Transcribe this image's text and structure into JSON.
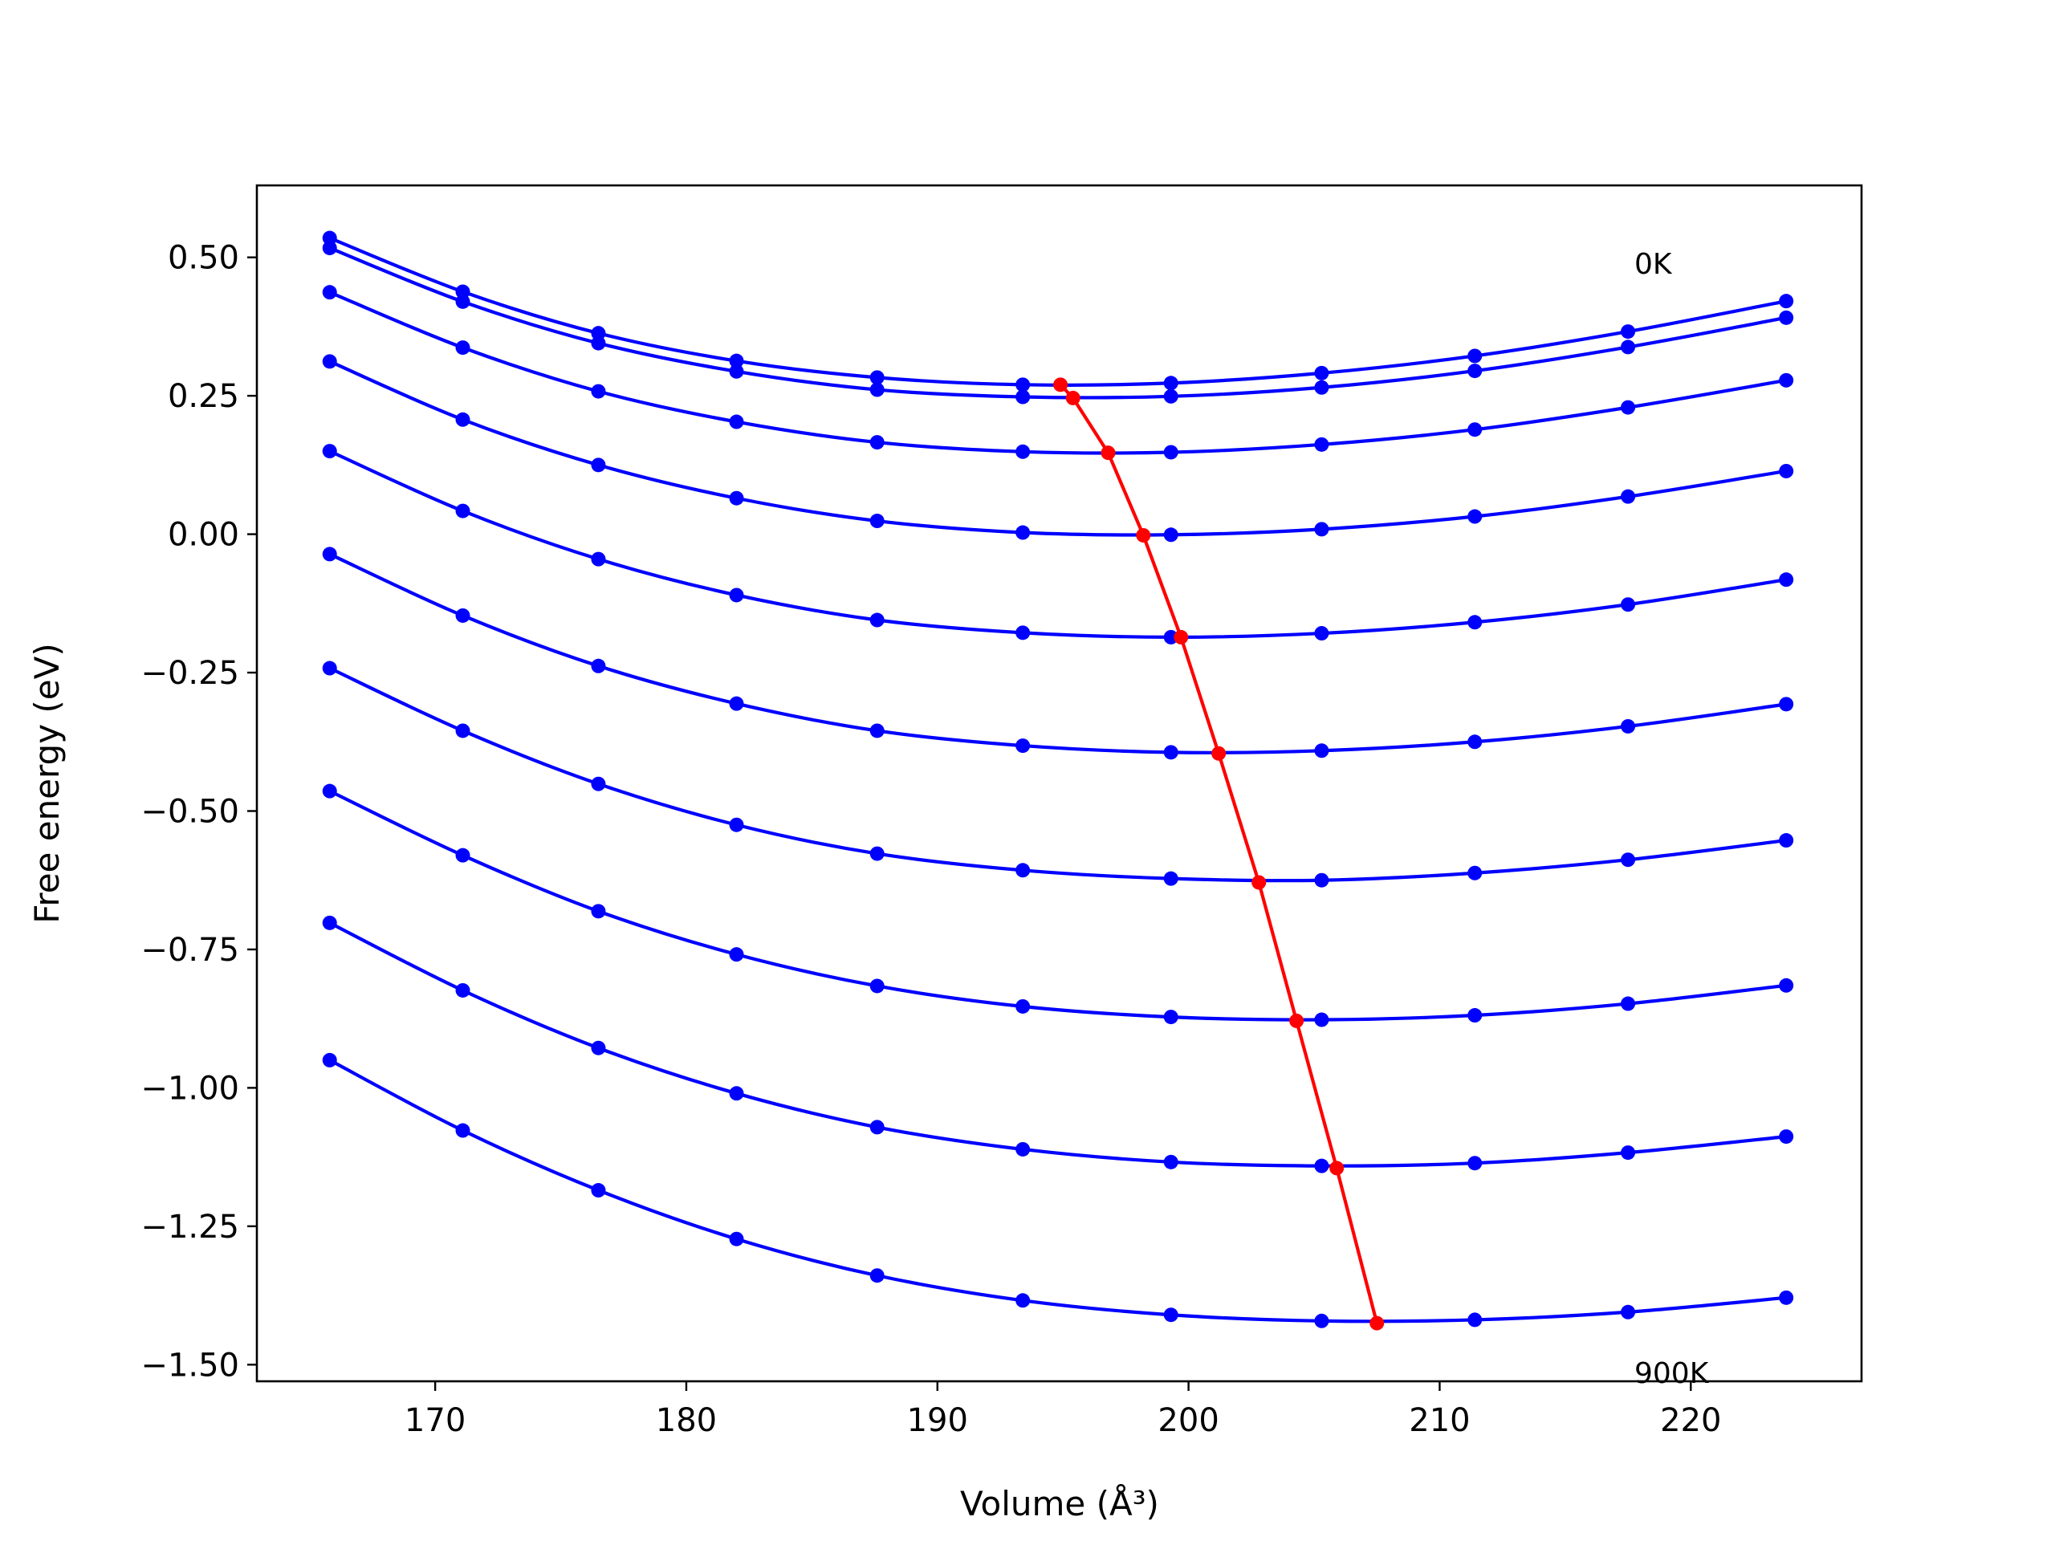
{
  "chart_data": {
    "type": "line",
    "xlabel": "Volume (Å³)",
    "ylabel": "Free energy (eV)",
    "xlim": [
      162.9,
      226.8
    ],
    "ylim": [
      -1.53,
      0.63
    ],
    "x_ticks": [
      170,
      180,
      190,
      200,
      210,
      220
    ],
    "x_tick_labels": [
      "170",
      "180",
      "190",
      "200",
      "210",
      "220"
    ],
    "y_ticks": [
      0.5,
      0.25,
      0.0,
      -0.25,
      -0.5,
      -0.75,
      -1.0,
      -1.25,
      -1.5
    ],
    "y_tick_labels": [
      "0.50",
      "0.25",
      "0.00",
      "−0.25",
      "−0.50",
      "−0.75",
      "−1.00",
      "−1.25",
      "−1.50"
    ],
    "grid": false,
    "annotations": [
      {
        "text": "0K",
        "x": 217.5,
        "y": 0.48
      },
      {
        "text": "900K",
        "x": 217.5,
        "y": -1.53
      }
    ],
    "x": [
      165.8,
      171.1,
      176.5,
      182.0,
      187.6,
      193.4,
      199.3,
      205.3,
      211.4,
      217.5,
      223.8
    ],
    "series": [
      {
        "color": "#0000ff",
        "values": [
          0.535,
          0.438,
          0.363,
          0.313,
          0.283,
          0.27,
          0.273,
          0.291,
          0.322,
          0.366,
          0.421
        ]
      },
      {
        "color": "#0000ff",
        "values": [
          0.517,
          0.42,
          0.345,
          0.294,
          0.261,
          0.248,
          0.249,
          0.265,
          0.295,
          0.338,
          0.391
        ]
      },
      {
        "color": "#0000ff",
        "values": [
          0.437,
          0.337,
          0.258,
          0.203,
          0.166,
          0.149,
          0.148,
          0.162,
          0.189,
          0.229,
          0.278
        ]
      },
      {
        "color": "#0000ff",
        "values": [
          0.312,
          0.207,
          0.125,
          0.065,
          0.024,
          0.003,
          -0.001,
          0.009,
          0.032,
          0.068,
          0.114
        ]
      },
      {
        "color": "#0000ff",
        "values": [
          0.15,
          0.042,
          -0.045,
          -0.11,
          -0.155,
          -0.178,
          -0.186,
          -0.179,
          -0.159,
          -0.127,
          -0.082
        ]
      },
      {
        "color": "#0000ff",
        "values": [
          -0.036,
          -0.147,
          -0.238,
          -0.306,
          -0.355,
          -0.382,
          -0.394,
          -0.391,
          -0.375,
          -0.347,
          -0.307
        ]
      },
      {
        "color": "#0000ff",
        "values": [
          -0.242,
          -0.355,
          -0.451,
          -0.525,
          -0.577,
          -0.607,
          -0.622,
          -0.625,
          -0.612,
          -0.588,
          -0.553
        ]
      },
      {
        "color": "#0000ff",
        "values": [
          -0.464,
          -0.58,
          -0.681,
          -0.759,
          -0.816,
          -0.853,
          -0.872,
          -0.877,
          -0.869,
          -0.848,
          -0.815
        ]
      },
      {
        "color": "#0000ff",
        "values": [
          -0.702,
          -0.824,
          -0.928,
          -1.01,
          -1.071,
          -1.111,
          -1.134,
          -1.141,
          -1.136,
          -1.117,
          -1.088
        ]
      },
      {
        "color": "#0000ff",
        "values": [
          -0.95,
          -1.077,
          -1.185,
          -1.273,
          -1.339,
          -1.384,
          -1.41,
          -1.421,
          -1.419,
          -1.405,
          -1.379
        ]
      }
    ],
    "minima_line": {
      "color": "#ff0000",
      "x": [
        194.9,
        195.4,
        196.8,
        198.2,
        199.7,
        201.2,
        202.8,
        204.3,
        205.9,
        207.5
      ],
      "y": [
        0.27,
        0.246,
        0.147,
        -0.002,
        -0.186,
        -0.396,
        -0.629,
        -0.879,
        -1.145,
        -1.425
      ]
    }
  }
}
